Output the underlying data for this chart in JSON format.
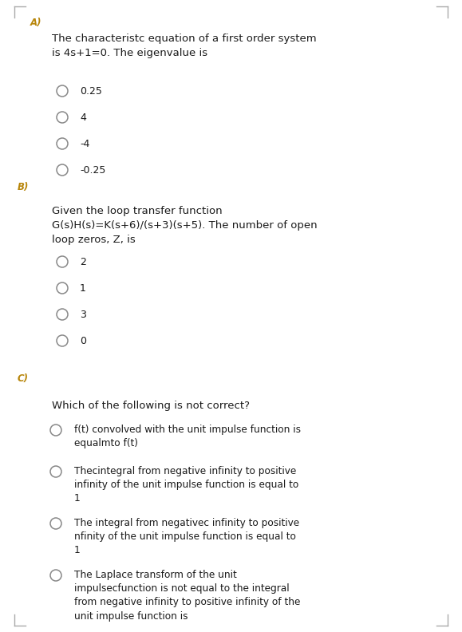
{
  "bg_color": "#ffffff",
  "text_color": "#1a1a1a",
  "label_color": "#b8860b",
  "tick_color": "#aaaaaa",
  "circle_color": "#888888",
  "font_size_label": 8.5,
  "font_size_question": 9.5,
  "font_size_option": 9.0,
  "section_A": {
    "label": "A)",
    "question": "The characteristc equation of a first order system\nis 4s+1=0. The eigenvalue is",
    "options": [
      "0.25",
      "4",
      "-4",
      "-0.25"
    ]
  },
  "section_B": {
    "label": "B)",
    "question": "Given the loop transfer function\nG(s)H(s)=K(s+6)/(s+3)(s+5). The number of open\nloop zeros, Z, is",
    "options": [
      "2",
      "1",
      "3",
      "0"
    ]
  },
  "section_C": {
    "label": "C)",
    "question": "Which of the following is not correct?",
    "options": [
      "f(t) convolved with the unit impulse function is\nequalmto f(t)",
      "Thecintegral from negative infinity to positive\ninfinity of the unit impulse function is equal to\n1",
      "The integral from negativec infinity to positive\nnfinity of the unit impulse function is equal to\n1",
      "The Laplace transform of the unit\nimpulsecfunction is not equal to the integral\nfrom negative infinity to positive infinity of the\nunit impulse function is"
    ]
  }
}
